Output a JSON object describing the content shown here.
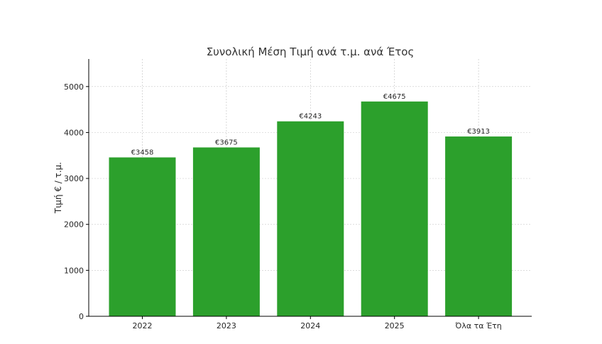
{
  "chart_data": {
    "type": "bar",
    "title": "Συνολική Μέση Τιμή ανά τ.μ. ανά Έτος",
    "xlabel": "",
    "ylabel": "Τιμή € / τ.μ.",
    "categories": [
      "2022",
      "2023",
      "2024",
      "2025",
      "Όλα τα Έτη"
    ],
    "values": [
      3458,
      3675,
      4243,
      4675,
      3913
    ],
    "data_labels": [
      "€3458",
      "€3675",
      "€4243",
      "€4675",
      "€3913"
    ],
    "ylim": [
      0,
      5600
    ],
    "yticks": [
      0,
      1000,
      2000,
      3000,
      4000,
      5000
    ],
    "ytick_labels": [
      "0",
      "1000",
      "2000",
      "3000",
      "4000",
      "5000"
    ],
    "grid": true,
    "colors": {
      "bar": "#2ca02c",
      "axis": "#000000",
      "grid": "#d0d0d0",
      "text": "#262626"
    }
  }
}
